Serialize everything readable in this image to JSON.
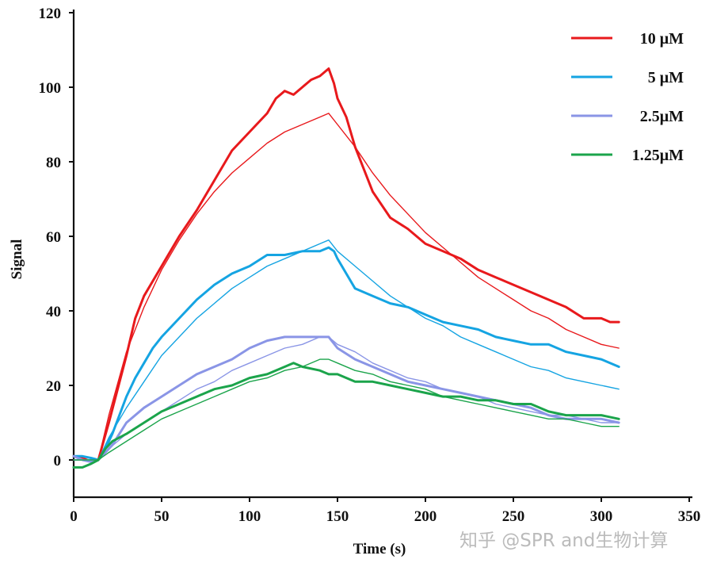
{
  "chart_data": {
    "type": "line",
    "title": "",
    "xlabel": "Time (s)",
    "ylabel": "Signal",
    "xlim": [
      0,
      350
    ],
    "ylim": [
      -10,
      120
    ],
    "xticks": [
      0,
      50,
      100,
      150,
      200,
      250,
      300,
      350
    ],
    "yticks": [
      0,
      20,
      40,
      60,
      80,
      100,
      120
    ],
    "grid": false,
    "legend_position": "top-right",
    "series": [
      {
        "name": "10 μM",
        "color": "#e8191c",
        "kind": "measured",
        "points": [
          [
            0,
            1
          ],
          [
            5,
            0.5
          ],
          [
            10,
            -0.5
          ],
          [
            14,
            0
          ],
          [
            17,
            5
          ],
          [
            20,
            10
          ],
          [
            25,
            19
          ],
          [
            30,
            28
          ],
          [
            35,
            38
          ],
          [
            40,
            44
          ],
          [
            50,
            52
          ],
          [
            60,
            60
          ],
          [
            70,
            67
          ],
          [
            80,
            75
          ],
          [
            90,
            83
          ],
          [
            100,
            88
          ],
          [
            110,
            93
          ],
          [
            115,
            97
          ],
          [
            120,
            99
          ],
          [
            125,
            98
          ],
          [
            130,
            100
          ],
          [
            135,
            102
          ],
          [
            140,
            103
          ],
          [
            145,
            105
          ],
          [
            148,
            101
          ],
          [
            150,
            97
          ],
          [
            155,
            92
          ],
          [
            160,
            84
          ],
          [
            170,
            72
          ],
          [
            180,
            65
          ],
          [
            190,
            62
          ],
          [
            200,
            58
          ],
          [
            210,
            56
          ],
          [
            220,
            54
          ],
          [
            230,
            51
          ],
          [
            240,
            49
          ],
          [
            250,
            47
          ],
          [
            260,
            45
          ],
          [
            270,
            43
          ],
          [
            280,
            41
          ],
          [
            290,
            38
          ],
          [
            300,
            38
          ],
          [
            305,
            37
          ],
          [
            310,
            37
          ]
        ]
      },
      {
        "name": "10 μM fit",
        "color": "#e8191c",
        "kind": "fit",
        "points": [
          [
            0,
            0
          ],
          [
            14,
            0
          ],
          [
            20,
            12
          ],
          [
            30,
            29
          ],
          [
            40,
            41
          ],
          [
            50,
            51
          ],
          [
            60,
            59
          ],
          [
            70,
            66
          ],
          [
            80,
            72
          ],
          [
            90,
            77
          ],
          [
            100,
            81
          ],
          [
            110,
            85
          ],
          [
            120,
            88
          ],
          [
            130,
            90
          ],
          [
            140,
            92
          ],
          [
            145,
            93
          ],
          [
            150,
            90
          ],
          [
            160,
            84
          ],
          [
            170,
            77
          ],
          [
            180,
            71
          ],
          [
            190,
            66
          ],
          [
            200,
            61
          ],
          [
            210,
            57
          ],
          [
            220,
            53
          ],
          [
            230,
            49
          ],
          [
            240,
            46
          ],
          [
            250,
            43
          ],
          [
            260,
            40
          ],
          [
            270,
            38
          ],
          [
            280,
            35
          ],
          [
            290,
            33
          ],
          [
            300,
            31
          ],
          [
            310,
            30
          ]
        ]
      },
      {
        "name": "5 μM",
        "color": "#15a4e2",
        "kind": "measured",
        "points": [
          [
            0,
            1
          ],
          [
            5,
            1
          ],
          [
            10,
            0.5
          ],
          [
            14,
            0
          ],
          [
            18,
            3
          ],
          [
            22,
            7
          ],
          [
            26,
            12
          ],
          [
            30,
            17
          ],
          [
            35,
            22
          ],
          [
            40,
            26
          ],
          [
            45,
            30
          ],
          [
            50,
            33
          ],
          [
            60,
            38
          ],
          [
            70,
            43
          ],
          [
            80,
            47
          ],
          [
            90,
            50
          ],
          [
            100,
            52
          ],
          [
            110,
            55
          ],
          [
            120,
            55
          ],
          [
            130,
            56
          ],
          [
            140,
            56
          ],
          [
            145,
            57
          ],
          [
            148,
            56
          ],
          [
            150,
            54
          ],
          [
            155,
            50
          ],
          [
            160,
            46
          ],
          [
            170,
            44
          ],
          [
            180,
            42
          ],
          [
            190,
            41
          ],
          [
            200,
            39
          ],
          [
            210,
            37
          ],
          [
            220,
            36
          ],
          [
            230,
            35
          ],
          [
            240,
            33
          ],
          [
            250,
            32
          ],
          [
            260,
            31
          ],
          [
            270,
            31
          ],
          [
            280,
            29
          ],
          [
            290,
            28
          ],
          [
            300,
            27
          ],
          [
            310,
            25
          ]
        ]
      },
      {
        "name": "5 μM fit",
        "color": "#15a4e2",
        "kind": "fit",
        "points": [
          [
            0,
            0
          ],
          [
            14,
            0
          ],
          [
            20,
            6
          ],
          [
            30,
            14
          ],
          [
            40,
            21
          ],
          [
            50,
            28
          ],
          [
            60,
            33
          ],
          [
            70,
            38
          ],
          [
            80,
            42
          ],
          [
            90,
            46
          ],
          [
            100,
            49
          ],
          [
            110,
            52
          ],
          [
            120,
            54
          ],
          [
            130,
            56
          ],
          [
            140,
            58
          ],
          [
            145,
            59
          ],
          [
            150,
            56
          ],
          [
            160,
            52
          ],
          [
            170,
            48
          ],
          [
            180,
            44
          ],
          [
            190,
            41
          ],
          [
            200,
            38
          ],
          [
            210,
            36
          ],
          [
            220,
            33
          ],
          [
            230,
            31
          ],
          [
            240,
            29
          ],
          [
            250,
            27
          ],
          [
            260,
            25
          ],
          [
            270,
            24
          ],
          [
            280,
            22
          ],
          [
            290,
            21
          ],
          [
            300,
            20
          ],
          [
            310,
            19
          ]
        ]
      },
      {
        "name": "2.5μM",
        "color": "#8a95e6",
        "kind": "measured",
        "points": [
          [
            0,
            1
          ],
          [
            5,
            0
          ],
          [
            10,
            -0.5
          ],
          [
            14,
            0
          ],
          [
            18,
            2
          ],
          [
            22,
            4
          ],
          [
            26,
            7
          ],
          [
            30,
            10
          ],
          [
            40,
            14
          ],
          [
            50,
            17
          ],
          [
            60,
            20
          ],
          [
            70,
            23
          ],
          [
            80,
            25
          ],
          [
            90,
            27
          ],
          [
            100,
            30
          ],
          [
            110,
            32
          ],
          [
            120,
            33
          ],
          [
            130,
            33
          ],
          [
            140,
            33
          ],
          [
            145,
            33
          ],
          [
            150,
            30
          ],
          [
            160,
            27
          ],
          [
            170,
            25
          ],
          [
            180,
            23
          ],
          [
            190,
            21
          ],
          [
            200,
            20
          ],
          [
            210,
            19
          ],
          [
            220,
            18
          ],
          [
            230,
            17
          ],
          [
            240,
            16
          ],
          [
            250,
            15
          ],
          [
            260,
            14
          ],
          [
            270,
            12
          ],
          [
            280,
            11
          ],
          [
            290,
            11
          ],
          [
            300,
            11
          ],
          [
            310,
            10
          ]
        ]
      },
      {
        "name": "2.5μM fit",
        "color": "#8a95e6",
        "kind": "fit",
        "points": [
          [
            0,
            0
          ],
          [
            14,
            0
          ],
          [
            20,
            3
          ],
          [
            30,
            7
          ],
          [
            40,
            10
          ],
          [
            50,
            13
          ],
          [
            60,
            16
          ],
          [
            70,
            19
          ],
          [
            80,
            21
          ],
          [
            90,
            24
          ],
          [
            100,
            26
          ],
          [
            110,
            28
          ],
          [
            120,
            30
          ],
          [
            130,
            31
          ],
          [
            140,
            33
          ],
          [
            145,
            33
          ],
          [
            150,
            31
          ],
          [
            160,
            29
          ],
          [
            170,
            26
          ],
          [
            180,
            24
          ],
          [
            190,
            22
          ],
          [
            200,
            21
          ],
          [
            210,
            19
          ],
          [
            220,
            18
          ],
          [
            230,
            17
          ],
          [
            240,
            15
          ],
          [
            250,
            14
          ],
          [
            260,
            13
          ],
          [
            270,
            12
          ],
          [
            280,
            12
          ],
          [
            290,
            11
          ],
          [
            300,
            10
          ],
          [
            310,
            10
          ]
        ]
      },
      {
        "name": "1.25μM",
        "color": "#1ba44b",
        "kind": "measured",
        "points": [
          [
            0,
            -2
          ],
          [
            5,
            -2
          ],
          [
            10,
            -1
          ],
          [
            14,
            0
          ],
          [
            18,
            3
          ],
          [
            22,
            5
          ],
          [
            26,
            6
          ],
          [
            30,
            7
          ],
          [
            40,
            10
          ],
          [
            50,
            13
          ],
          [
            60,
            15
          ],
          [
            70,
            17
          ],
          [
            80,
            19
          ],
          [
            90,
            20
          ],
          [
            100,
            22
          ],
          [
            110,
            23
          ],
          [
            120,
            25
          ],
          [
            125,
            26
          ],
          [
            130,
            25
          ],
          [
            140,
            24
          ],
          [
            145,
            23
          ],
          [
            150,
            23
          ],
          [
            160,
            21
          ],
          [
            170,
            21
          ],
          [
            180,
            20
          ],
          [
            190,
            19
          ],
          [
            200,
            18
          ],
          [
            210,
            17
          ],
          [
            220,
            17
          ],
          [
            230,
            16
          ],
          [
            240,
            16
          ],
          [
            250,
            15
          ],
          [
            260,
            15
          ],
          [
            270,
            13
          ],
          [
            280,
            12
          ],
          [
            290,
            12
          ],
          [
            300,
            12
          ],
          [
            310,
            11
          ]
        ]
      },
      {
        "name": "1.25μM fit",
        "color": "#1ba44b",
        "kind": "fit",
        "points": [
          [
            0,
            0
          ],
          [
            14,
            0
          ],
          [
            20,
            2
          ],
          [
            30,
            5
          ],
          [
            40,
            8
          ],
          [
            50,
            11
          ],
          [
            60,
            13
          ],
          [
            70,
            15
          ],
          [
            80,
            17
          ],
          [
            90,
            19
          ],
          [
            100,
            21
          ],
          [
            110,
            22
          ],
          [
            120,
            24
          ],
          [
            130,
            25
          ],
          [
            140,
            27
          ],
          [
            145,
            27
          ],
          [
            150,
            26
          ],
          [
            160,
            24
          ],
          [
            170,
            23
          ],
          [
            180,
            21
          ],
          [
            190,
            20
          ],
          [
            200,
            19
          ],
          [
            210,
            17
          ],
          [
            220,
            16
          ],
          [
            230,
            15
          ],
          [
            240,
            14
          ],
          [
            250,
            13
          ],
          [
            260,
            12
          ],
          [
            270,
            11
          ],
          [
            280,
            11
          ],
          [
            290,
            10
          ],
          [
            300,
            9
          ],
          [
            310,
            9
          ]
        ]
      }
    ],
    "legend": [
      {
        "label": "10 μM",
        "color": "#e8191c"
      },
      {
        "label": "5 μM",
        "color": "#15a4e2"
      },
      {
        "label": "2.5μM",
        "color": "#8a95e6"
      },
      {
        "label": "1.25μM",
        "color": "#1ba44b"
      }
    ]
  },
  "watermark": "知乎 @SPR and生物计算"
}
